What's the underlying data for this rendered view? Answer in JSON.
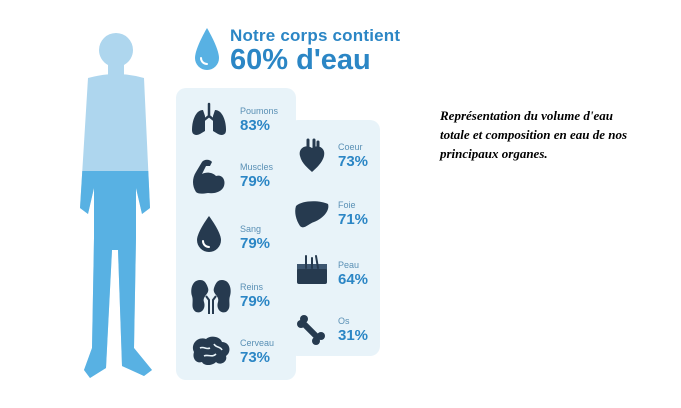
{
  "title": {
    "line1": "Notre corps contient",
    "line2": "60% d'eau"
  },
  "organs_left": [
    {
      "name": "Poumons",
      "percent": "83%",
      "icon": "lungs-icon",
      "level": 0.83
    },
    {
      "name": "Muscles",
      "percent": "79%",
      "icon": "muscle-arm-icon",
      "level": 0.79
    },
    {
      "name": "Sang",
      "percent": "79%",
      "icon": "blood-drop-icon",
      "level": 0.79
    },
    {
      "name": "Reins",
      "percent": "79%",
      "icon": "kidneys-icon",
      "level": 0.79
    },
    {
      "name": "Cerveau",
      "percent": "73%",
      "icon": "brain-icon",
      "level": 0.73
    }
  ],
  "organs_right": [
    {
      "name": "Coeur",
      "percent": "73%",
      "icon": "heart-icon",
      "level": 0.73
    },
    {
      "name": "Foie",
      "percent": "71%",
      "icon": "liver-icon",
      "level": 0.71
    },
    {
      "name": "Peau",
      "percent": "64%",
      "icon": "skin-icon",
      "level": 0.64
    },
    {
      "name": "Os",
      "percent": "31%",
      "icon": "bone-icon",
      "level": 0.31
    }
  ],
  "human_figure": {
    "water_level": 0.6,
    "icon": "human-silhouette-icon"
  },
  "caption": "Représentation du volume d'eau totale et composition en eau de nos principaux organes.",
  "colors": {
    "water_light": "#aed6ee",
    "water_dark": "#58b1e3",
    "accent": "#2b86c5",
    "panel": "#e8f3f9",
    "icon_dark": "#263a4f"
  }
}
